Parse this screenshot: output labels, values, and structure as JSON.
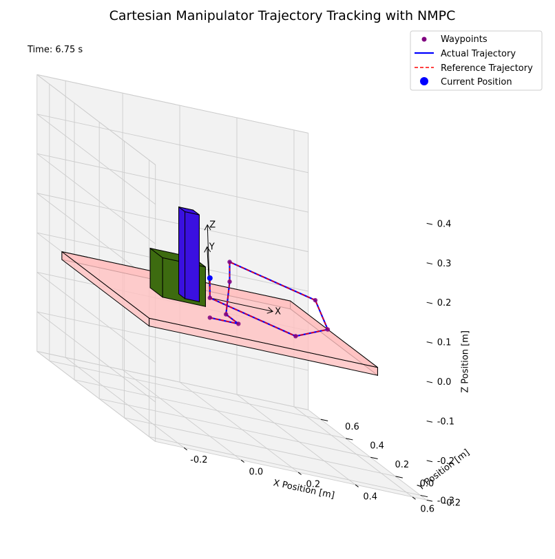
{
  "chart_data": {
    "type": "line",
    "projection": "3d",
    "title": "Cartesian Manipulator Trajectory Tracking with NMPC",
    "time_label": "Time: 6.75 s",
    "xlabel": "X Position [m]",
    "ylabel": "Y Position [m]",
    "zlabel": "Z Position [m]",
    "xlim": [
      -0.3,
      0.65
    ],
    "ylim": [
      -0.25,
      0.7
    ],
    "zlim": [
      -0.3,
      0.4
    ],
    "x_ticks": [
      "-0.2",
      "0.0",
      "0.2",
      "0.4",
      "0.6"
    ],
    "y_ticks": [
      "-0.2",
      "0.0",
      "0.2",
      "0.4",
      "0.6"
    ],
    "z_ticks": [
      "-0.3",
      "-0.2",
      "-0.1",
      "0.0",
      "0.1",
      "0.2",
      "0.3",
      "0.4"
    ],
    "grid": true,
    "legend_position": "upper right",
    "series": [
      {
        "name": "Waypoints",
        "style": "markers",
        "color": "#800080",
        "points": [
          [
            0.0,
            0.0,
            0.0
          ],
          [
            0.1,
            0.0,
            0.0
          ],
          [
            0.1,
            0.1,
            0.0
          ],
          [
            0.2,
            0.3,
            0.05
          ],
          [
            0.2,
            0.3,
            0.1
          ],
          [
            0.5,
            0.3,
            0.05
          ],
          [
            0.5,
            0.2,
            0.0
          ],
          [
            0.3,
            0.0,
            0.0
          ],
          [
            0.0,
            0.0,
            0.05
          ],
          [
            0.0,
            0.0,
            0.1
          ]
        ]
      },
      {
        "name": "Actual Trajectory",
        "style": "solid",
        "color": "#0000ff",
        "points": [
          [
            0.0,
            0.0,
            0.0
          ],
          [
            0.1,
            0.0,
            0.0
          ],
          [
            0.1,
            0.1,
            0.0
          ],
          [
            0.2,
            0.3,
            0.05
          ],
          [
            0.2,
            0.3,
            0.1
          ],
          [
            0.5,
            0.3,
            0.05
          ],
          [
            0.5,
            0.2,
            0.0
          ],
          [
            0.3,
            0.0,
            0.0
          ],
          [
            0.0,
            0.0,
            0.05
          ],
          [
            0.0,
            0.0,
            0.1
          ]
        ]
      },
      {
        "name": "Reference Trajectory",
        "style": "dashed",
        "color": "#ff0000",
        "points": [
          [
            0.0,
            0.0,
            0.0
          ],
          [
            0.1,
            0.0,
            0.0
          ],
          [
            0.1,
            0.1,
            0.0
          ],
          [
            0.2,
            0.3,
            0.05
          ],
          [
            0.2,
            0.3,
            0.1
          ],
          [
            0.5,
            0.3,
            0.05
          ],
          [
            0.5,
            0.2,
            0.0
          ],
          [
            0.3,
            0.0,
            0.0
          ],
          [
            0.0,
            0.0,
            0.05
          ],
          [
            0.0,
            0.0,
            0.1
          ]
        ]
      },
      {
        "name": "Current Position",
        "style": "marker",
        "color": "#0000ff",
        "points": [
          [
            0.0,
            0.0,
            0.1
          ]
        ]
      }
    ],
    "table": {
      "x": [
        -0.3,
        0.5
      ],
      "y": [
        -0.2,
        0.5
      ],
      "z": [
        -0.02,
        0.0
      ],
      "color": "#ffc0c0"
    },
    "obstacles": [
      {
        "name": "green-box",
        "color": "#3d6b10",
        "x": [
          -0.1,
          0.05
        ],
        "y": [
          0.15,
          0.25
        ],
        "z": [
          0.0,
          0.1
        ]
      },
      {
        "name": "blue-box",
        "color": "#3a10e0",
        "x": [
          0.0,
          0.05
        ],
        "y": [
          0.2,
          0.25
        ],
        "z": [
          0.0,
          0.22
        ]
      }
    ],
    "frame_axes": {
      "labels": [
        "X",
        "Y",
        "Z"
      ],
      "origin": [
        0.0,
        0.0,
        0.1
      ],
      "length": 0.1
    }
  },
  "colors": {
    "pane": "#f2f2f2",
    "grid": "#cccccc",
    "axis_line": "#000000"
  }
}
